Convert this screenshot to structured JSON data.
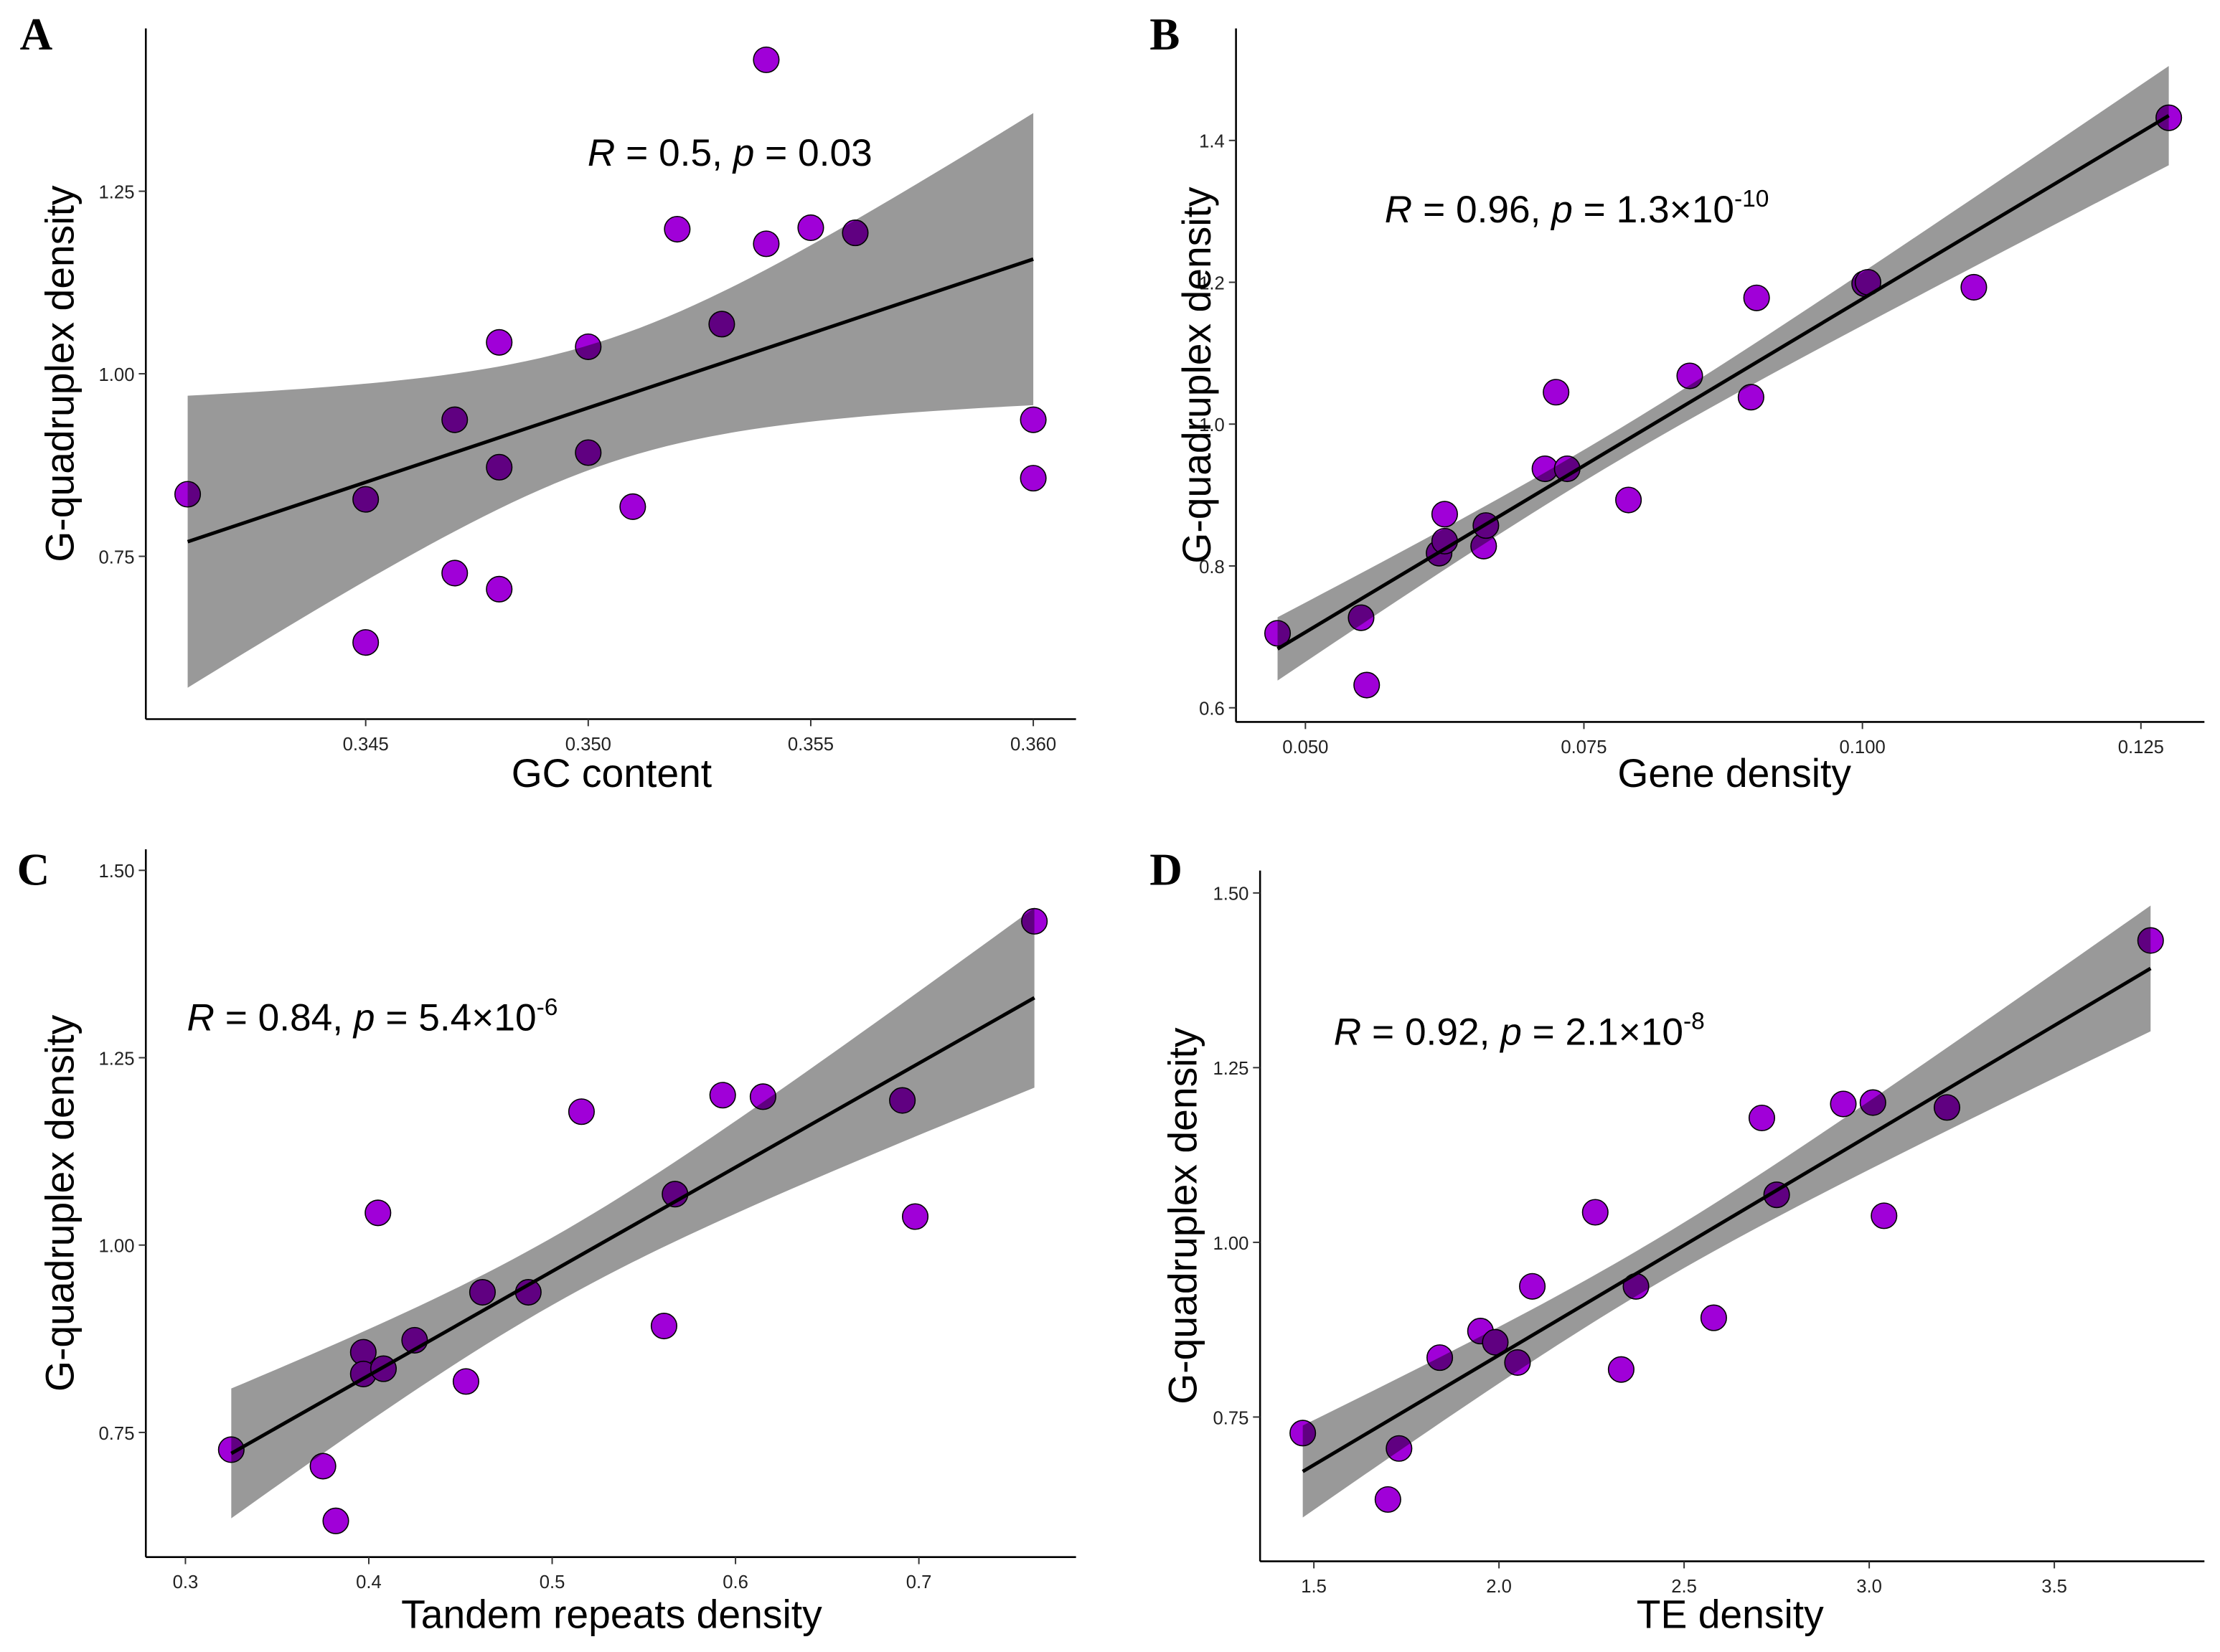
{
  "chart_data": [
    {
      "panel": "A",
      "type": "scatter",
      "xlabel": "GC content",
      "ylabel": "G-quadruplex density",
      "xlim": [
        0.34006,
        0.36096
      ],
      "ylim": [
        0.527,
        1.473
      ],
      "xticks": [
        0.345,
        0.35,
        0.355,
        0.36
      ],
      "xtick_labels": [
        "0.345",
        "0.350",
        "0.355",
        "0.360"
      ],
      "yticks": [
        0.75,
        1.0,
        1.25
      ],
      "ytick_labels": [
        "0.75",
        "1.00",
        "1.25"
      ],
      "points": [
        [
          0.341,
          0.835
        ],
        [
          0.345,
          0.828
        ],
        [
          0.345,
          0.632
        ],
        [
          0.347,
          0.937
        ],
        [
          0.347,
          0.727
        ],
        [
          0.348,
          1.043
        ],
        [
          0.348,
          0.872
        ],
        [
          0.348,
          0.705
        ],
        [
          0.35,
          1.037
        ],
        [
          0.35,
          0.892
        ],
        [
          0.351,
          0.818
        ],
        [
          0.352,
          1.198
        ],
        [
          0.353,
          1.068
        ],
        [
          0.354,
          1.43
        ],
        [
          0.354,
          1.178
        ],
        [
          0.355,
          1.2
        ],
        [
          0.356,
          1.193
        ],
        [
          0.36,
          0.937
        ],
        [
          0.36,
          0.857
        ]
      ],
      "fit": {
        "x": [
          0.341,
          0.36
        ],
        "y": [
          0.77,
          1.157
        ],
        "ci_center_x": 0.3505,
        "ci_min_halfwidth": 0.085,
        "ci_end_halfwidth": 0.2
      },
      "annotation": {
        "R_symbol": "R",
        "r_text": " = 0.5, ",
        "p_symbol": "p",
        "p_text": " = 0.03",
        "p_exp": ""
      }
    },
    {
      "panel": "B",
      "type": "scatter",
      "xlabel": "Gene density",
      "ylabel": "G-quadruplex density",
      "xlim": [
        0.04377,
        0.1307
      ],
      "ylim": [
        0.58,
        1.558
      ],
      "xticks": [
        0.05,
        0.075,
        0.1,
        0.125
      ],
      "xtick_labels": [
        "0.050",
        "0.075",
        "0.100",
        "0.125"
      ],
      "yticks": [
        0.6,
        0.8,
        1.0,
        1.2,
        1.4
      ],
      "ytick_labels": [
        "0.6",
        "0.8",
        "1.0",
        "1.2",
        "1.4"
      ],
      "points": [
        [
          0.0475,
          0.705
        ],
        [
          0.055,
          0.727
        ],
        [
          0.0555,
          0.632
        ],
        [
          0.062,
          0.818
        ],
        [
          0.0625,
          0.835
        ],
        [
          0.0625,
          0.873
        ],
        [
          0.066,
          0.828
        ],
        [
          0.0662,
          0.857
        ],
        [
          0.0715,
          0.937
        ],
        [
          0.0735,
          0.937
        ],
        [
          0.0725,
          1.045
        ],
        [
          0.079,
          0.893
        ],
        [
          0.0845,
          1.068
        ],
        [
          0.09,
          1.038
        ],
        [
          0.0905,
          1.178
        ],
        [
          0.1002,
          1.198
        ],
        [
          0.1005,
          1.2
        ],
        [
          0.11,
          1.193
        ],
        [
          0.1275,
          1.432
        ]
      ],
      "fit": {
        "x": [
          0.0475,
          0.1275
        ],
        "y": [
          0.683,
          1.435
        ],
        "ci_center_x": 0.077,
        "ci_min_halfwidth": 0.022,
        "ci_end_halfwidth": 0.07
      },
      "annotation": {
        "R_symbol": "R",
        "r_text": " = 0.96, ",
        "p_symbol": "p",
        "p_text": " = 1.3×10",
        "p_exp": "-10"
      }
    },
    {
      "panel": "C",
      "type": "scatter",
      "xlabel": "Tandem repeats density",
      "ylabel": "G-quadruplex density",
      "xlim": [
        0.2784,
        0.7857
      ],
      "ylim": [
        0.5837,
        1.528
      ],
      "xticks": [
        0.3,
        0.4,
        0.5,
        0.6,
        0.7
      ],
      "xtick_labels": [
        "0.3",
        "0.4",
        "0.5",
        "0.6",
        "0.7"
      ],
      "yticks": [
        0.75,
        1.0,
        1.25,
        1.5
      ],
      "ytick_labels": [
        "0.75",
        "1.00",
        "1.25",
        "1.50"
      ],
      "points": [
        [
          0.325,
          0.727
        ],
        [
          0.375,
          0.705
        ],
        [
          0.382,
          0.632
        ],
        [
          0.397,
          0.857
        ],
        [
          0.397,
          0.828
        ],
        [
          0.405,
          1.043
        ],
        [
          0.408,
          0.835
        ],
        [
          0.425,
          0.873
        ],
        [
          0.453,
          0.818
        ],
        [
          0.462,
          0.937
        ],
        [
          0.487,
          0.937
        ],
        [
          0.516,
          1.178
        ],
        [
          0.561,
          0.892
        ],
        [
          0.567,
          1.068
        ],
        [
          0.593,
          1.2
        ],
        [
          0.615,
          1.198
        ],
        [
          0.691,
          1.193
        ],
        [
          0.698,
          1.038
        ],
        [
          0.763,
          1.432
        ]
      ],
      "fit": {
        "x": [
          0.325,
          0.763
        ],
        "y": [
          0.722,
          1.33
        ],
        "ci_center_x": 0.5,
        "ci_min_halfwidth": 0.045,
        "ci_end_halfwidth": 0.12
      },
      "annotation": {
        "R_symbol": "R",
        "r_text": " = 0.84, ",
        "p_symbol": "p",
        "p_text": " = 5.4×10",
        "p_exp": "-6"
      }
    },
    {
      "panel": "D",
      "type": "scatter",
      "xlabel": "TE density",
      "ylabel": "G-quadruplex density",
      "xlim": [
        1.3547,
        3.9054
      ],
      "ylim": [
        0.5435,
        1.532
      ],
      "xticks": [
        1.5,
        2.0,
        2.5,
        3.0,
        3.5
      ],
      "xtick_labels": [
        "1.5",
        "2.0",
        "2.5",
        "3.0",
        "3.5"
      ],
      "yticks": [
        0.75,
        1.0,
        1.25,
        1.5
      ],
      "ytick_labels": [
        "0.75",
        "1.00",
        "1.25",
        "1.50"
      ],
      "points": [
        [
          1.47,
          0.727
        ],
        [
          1.7,
          0.632
        ],
        [
          1.73,
          0.705
        ],
        [
          1.84,
          0.835
        ],
        [
          1.95,
          0.873
        ],
        [
          1.99,
          0.857
        ],
        [
          2.05,
          0.828
        ],
        [
          2.09,
          0.937
        ],
        [
          2.26,
          1.043
        ],
        [
          2.33,
          0.818
        ],
        [
          2.37,
          0.937
        ],
        [
          2.58,
          0.892
        ],
        [
          2.71,
          1.178
        ],
        [
          2.75,
          1.068
        ],
        [
          2.93,
          1.198
        ],
        [
          3.01,
          1.2
        ],
        [
          3.04,
          1.038
        ],
        [
          3.21,
          1.193
        ],
        [
          3.76,
          1.432
        ]
      ],
      "fit": {
        "x": [
          1.47,
          3.76
        ],
        "y": [
          0.672,
          1.392
        ],
        "ci_center_x": 2.4,
        "ci_min_halfwidth": 0.032,
        "ci_end_halfwidth": 0.09
      },
      "annotation": {
        "R_symbol": "R",
        "r_text": " = 0.92, ",
        "p_symbol": "p",
        "p_text": " = 2.1×10",
        "p_exp": "-8"
      }
    }
  ],
  "colors": {
    "point": "#a000d8",
    "band": "#000000",
    "line": "#000000"
  }
}
